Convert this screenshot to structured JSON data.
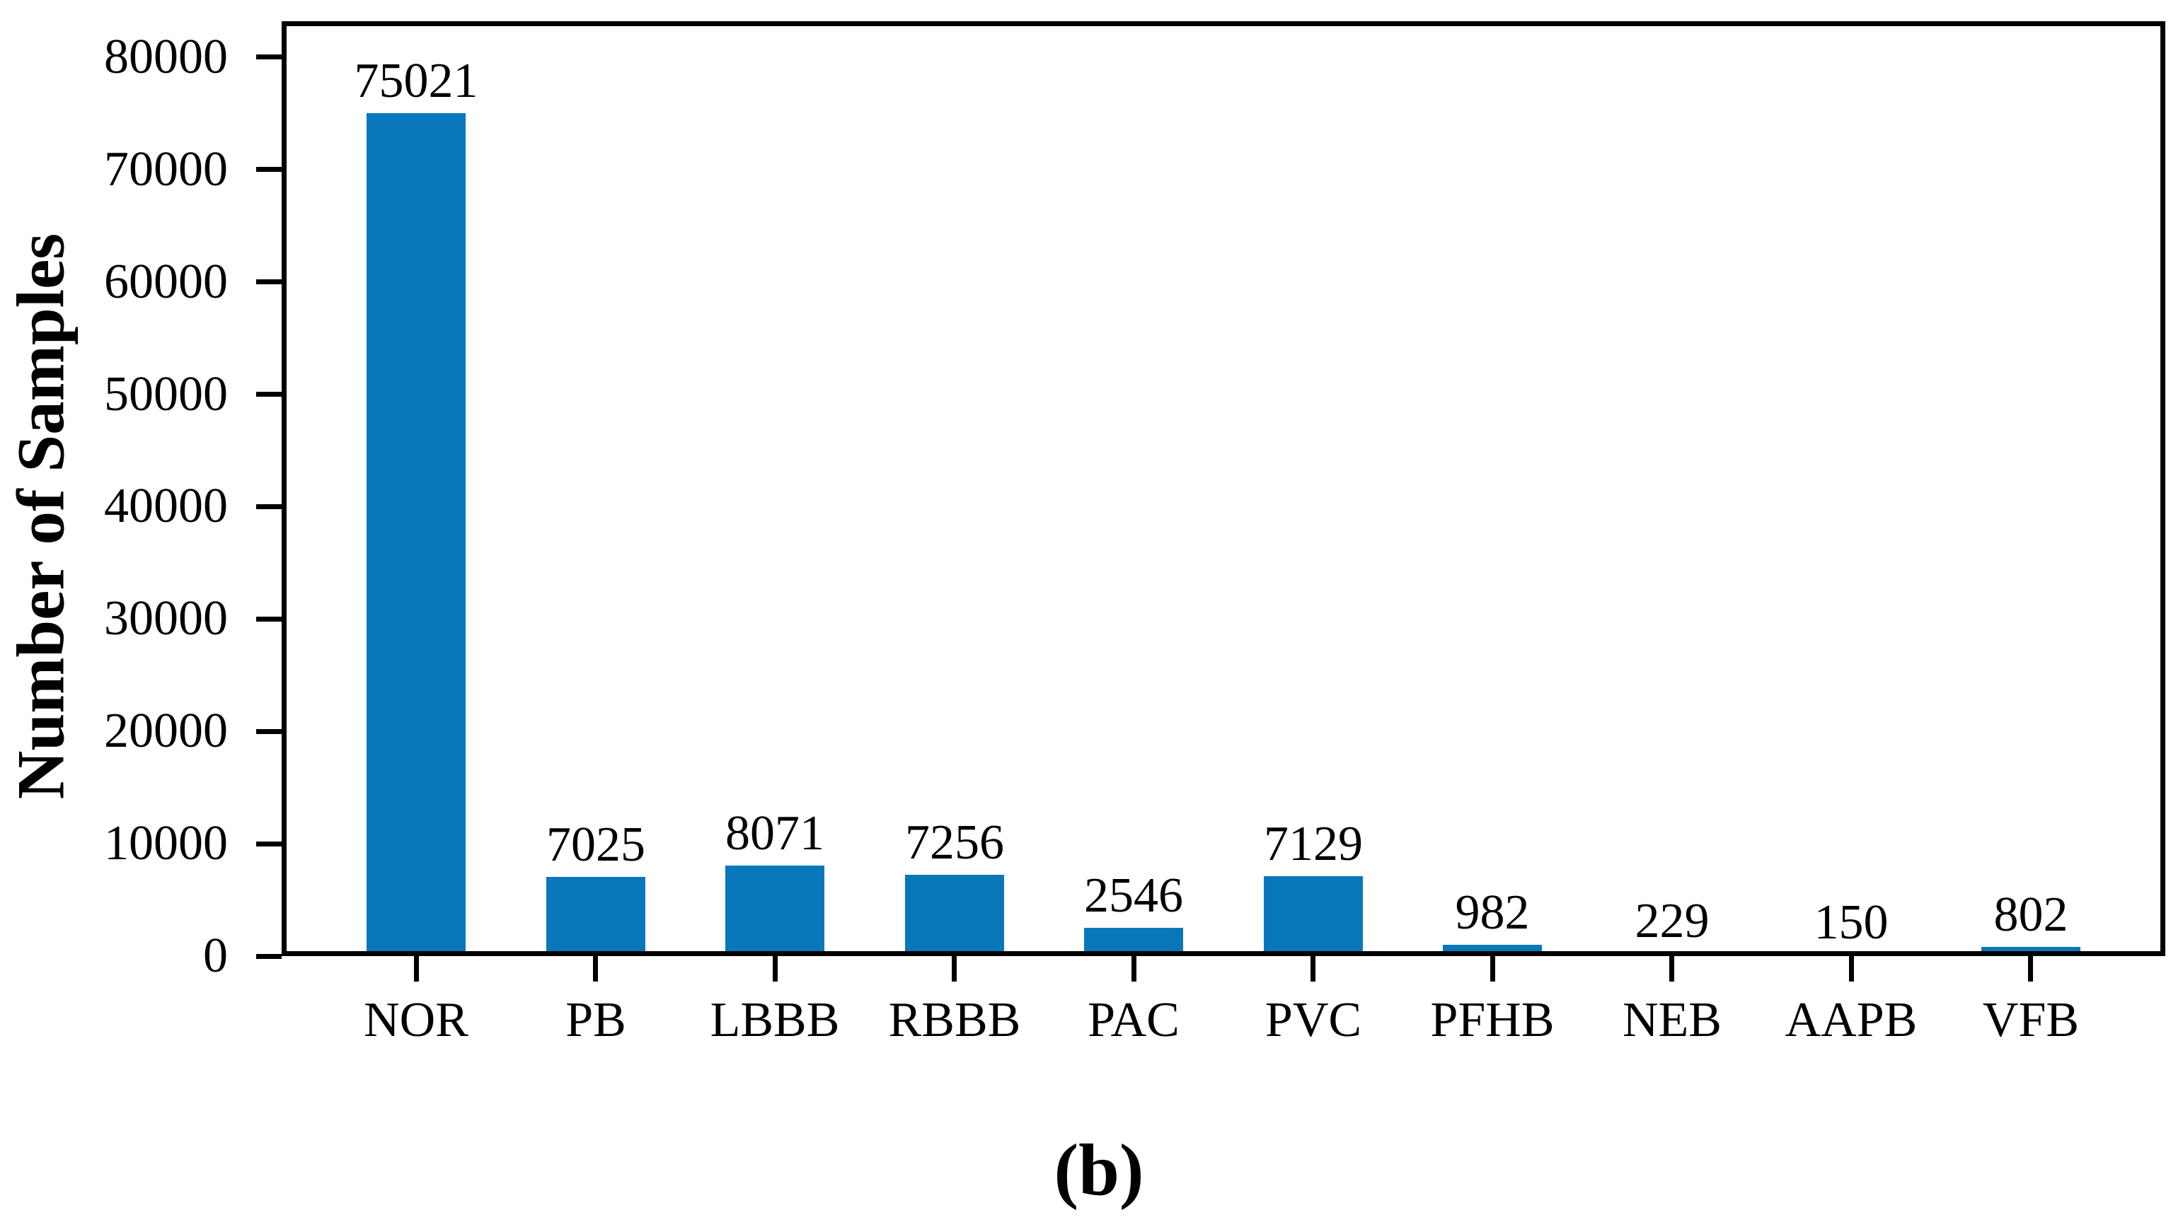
{
  "figure": {
    "caption": "(b)",
    "background_color": "#ffffff",
    "spine_color": "#000000",
    "text_color": "#000000"
  },
  "chart_data": {
    "type": "bar",
    "title": "",
    "xlabel": "",
    "ylabel": "Number of Samples",
    "categories": [
      "NOR",
      "PB",
      "LBBB",
      "RBBB",
      "PAC",
      "PVC",
      "PFHB",
      "NEB",
      "AAPB",
      "VFB"
    ],
    "values": [
      75021,
      7025,
      8071,
      7256,
      2546,
      7129,
      982,
      229,
      150,
      802
    ],
    "bar_value_labels": [
      "75021",
      "7025",
      "8071",
      "7256",
      "2546",
      "7129",
      "982",
      "229",
      "150",
      "802"
    ],
    "yticks": [
      0,
      10000,
      20000,
      30000,
      40000,
      50000,
      60000,
      70000,
      80000
    ],
    "ytick_labels": [
      "0",
      "10000",
      "20000",
      "30000",
      "40000",
      "50000",
      "60000",
      "70000",
      "80000"
    ],
    "ylim": [
      0,
      83200
    ],
    "bar_color": "#0878bb",
    "grid": false,
    "legend": null
  }
}
